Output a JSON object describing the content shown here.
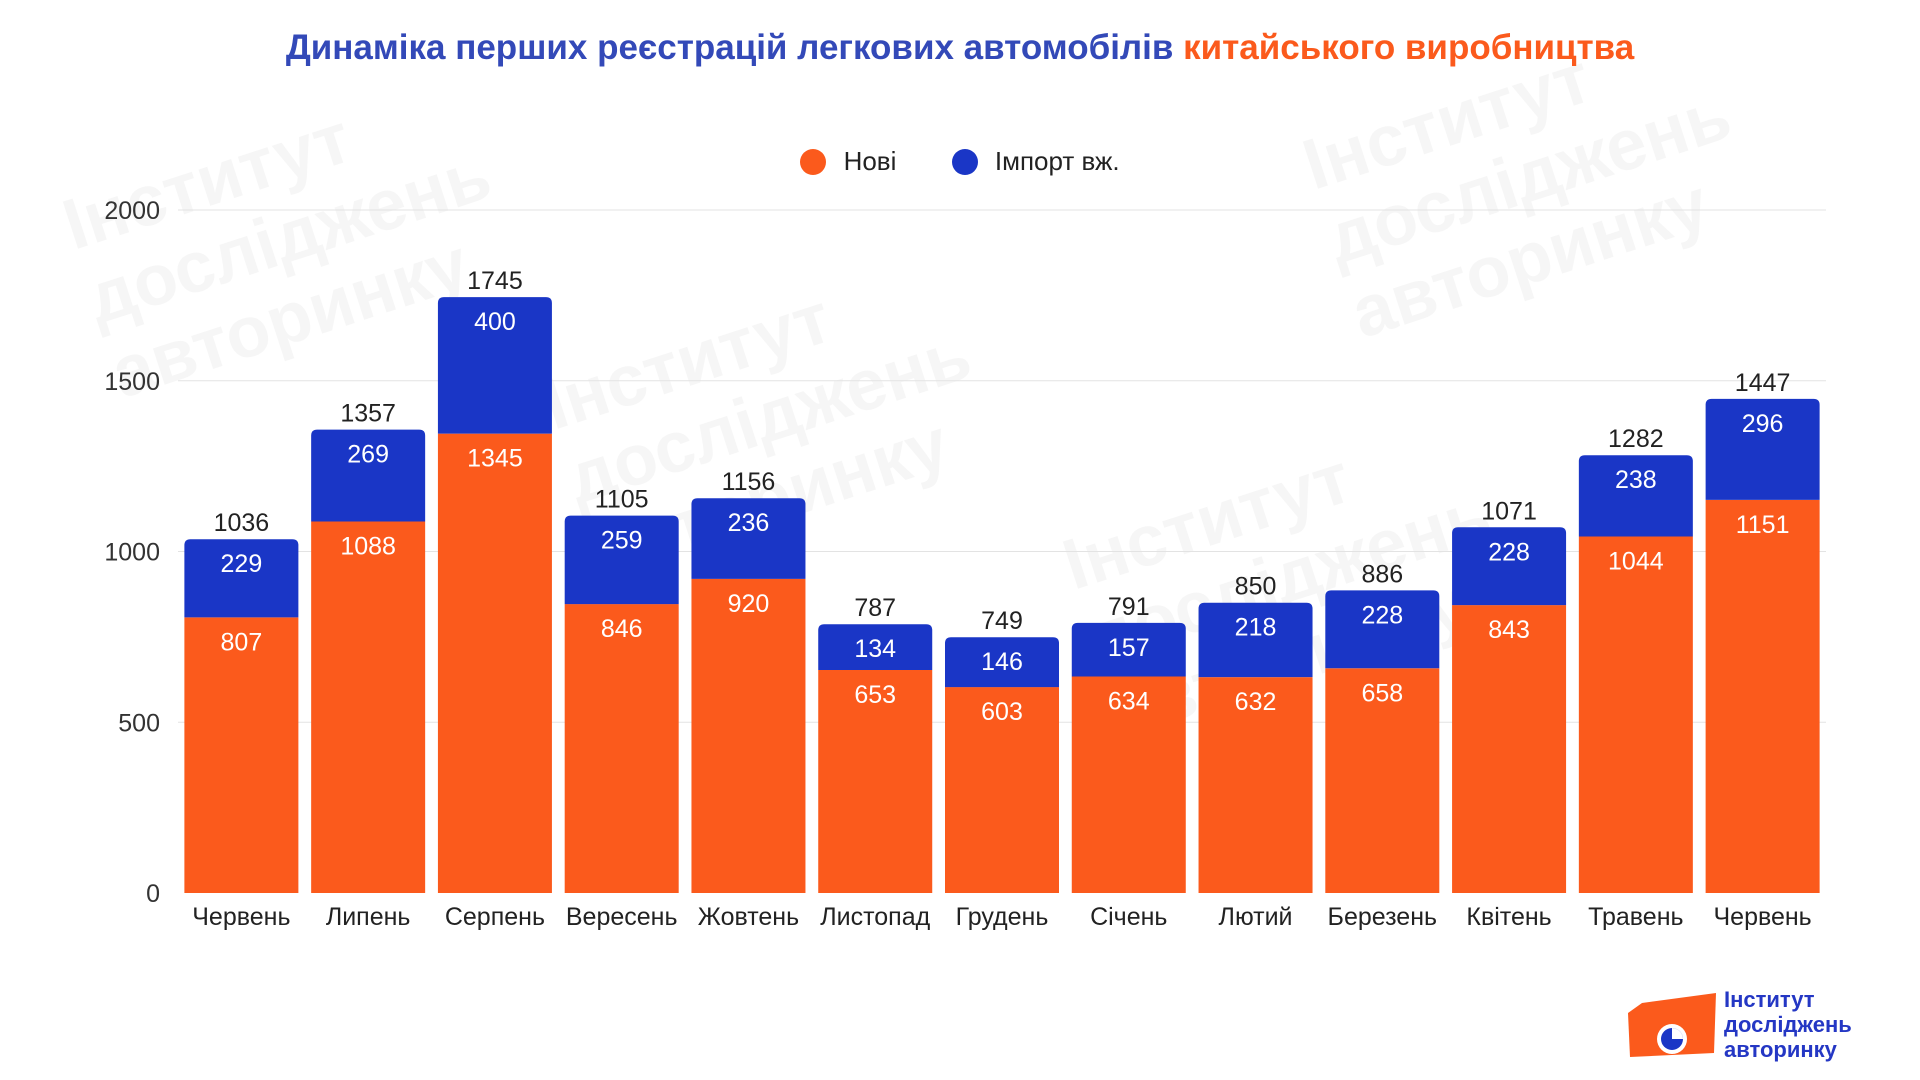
{
  "title": {
    "part1": "Динаміка перших реєстрацій легкових автомобілів",
    "part2": "китайського виробництва"
  },
  "colors": {
    "new": "#fb5a1c",
    "import": "#1a36c6",
    "title_blue": "#3349b8"
  },
  "watermark_text": [
    "Інститут",
    "досліджень",
    "авторинку"
  ],
  "logo": {
    "line1": "Інститут",
    "line2": "досліджень",
    "line3": "авторинку"
  },
  "chart_data": {
    "type": "bar",
    "stacked": true,
    "title": "Динаміка перших реєстрацій легкових автомобілів китайського виробництва",
    "xlabel": "",
    "ylabel": "",
    "ylim": [
      0,
      2000
    ],
    "yticks": [
      0,
      500,
      1000,
      1500,
      2000
    ],
    "grid": true,
    "legend_position": "top-center",
    "categories": [
      "Червень",
      "Липень",
      "Серпень",
      "Вересень",
      "Жовтень",
      "Листопад",
      "Грудень",
      "Січень",
      "Лютий",
      "Березень",
      "Квітень",
      "Травень",
      "Червень"
    ],
    "series": [
      {
        "name": "Нові",
        "color": "#fb5a1c",
        "values": [
          807,
          1088,
          1345,
          846,
          920,
          653,
          603,
          634,
          632,
          658,
          843,
          1044,
          1151
        ]
      },
      {
        "name": "Імпорт вж.",
        "color": "#1a36c6",
        "values": [
          229,
          269,
          400,
          259,
          236,
          134,
          146,
          157,
          218,
          228,
          228,
          238,
          296
        ]
      }
    ],
    "totals": [
      1036,
      1357,
      1745,
      1105,
      1156,
      787,
      749,
      791,
      850,
      886,
      1071,
      1282,
      1447
    ]
  }
}
